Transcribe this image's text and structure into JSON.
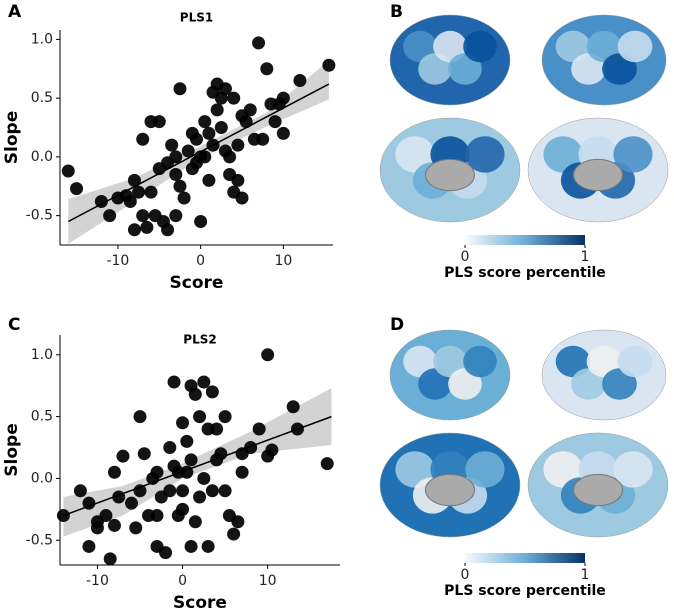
{
  "panel_labels": [
    "A",
    "B",
    "C",
    "D"
  ],
  "chart_data": [
    {
      "type": "scatter",
      "title": "PLS1",
      "x_label": "Score",
      "y_label": "Slope",
      "color": "#000000",
      "band_color": "#d3d3d3",
      "xlim": [
        -17,
        16
      ],
      "ylim": [
        -0.75,
        1.08
      ],
      "xticks": [
        -10,
        0,
        10
      ],
      "yticks": [
        -0.5,
        {
          "value": 0,
          "label": "0.0"
        },
        0.5,
        {
          "value": 1,
          "label": "1.0"
        }
      ],
      "x": [
        -16,
        -15,
        -12,
        -11,
        -10,
        -9,
        -8.5,
        -8,
        -7.5,
        -7,
        -6.5,
        -6,
        -5.5,
        -5,
        -5,
        -4.5,
        -4,
        -4,
        -3.5,
        -3,
        -3,
        -2.5,
        -2.5,
        -2,
        -1.5,
        -1,
        -1,
        -0.5,
        -0.5,
        0,
        0,
        0.5,
        0.5,
        1,
        1,
        1.5,
        1.5,
        2,
        2,
        2.5,
        2.5,
        3,
        3,
        3.5,
        3.5,
        4,
        4,
        4.5,
        4.5,
        5,
        5,
        5.5,
        6,
        6.5,
        7,
        7.5,
        8,
        8.5,
        9,
        9.5,
        10,
        10,
        12,
        15.5,
        -7,
        -6,
        -3,
        -8
      ],
      "y": [
        -0.12,
        -0.27,
        -0.38,
        -0.5,
        -0.35,
        -0.33,
        -0.38,
        -0.2,
        -0.3,
        -0.5,
        -0.6,
        -0.3,
        -0.5,
        -0.1,
        0.3,
        -0.55,
        -0.62,
        -0.05,
        0.1,
        -0.15,
        0,
        0.58,
        -0.25,
        -0.35,
        0.05,
        0.2,
        -0.1,
        0.15,
        -0.05,
        -0.55,
        0,
        0,
        0.3,
        0.2,
        -0.2,
        0.55,
        0.1,
        0.4,
        0.62,
        0.5,
        0.25,
        0.58,
        0.05,
        0,
        -0.15,
        0.5,
        -0.3,
        -0.2,
        0.1,
        -0.35,
        0.35,
        0.3,
        0.4,
        0.15,
        0.97,
        0.15,
        0.75,
        0.45,
        0.3,
        0.45,
        0.5,
        0.2,
        0.65,
        0.78,
        0.15,
        0.3,
        -0.5,
        -0.62
      ],
      "fit": {
        "x": [
          -16,
          15.5
        ],
        "y": [
          -0.55,
          0.62
        ]
      },
      "band": {
        "x": [
          -16,
          -8,
          0,
          8,
          15.5
        ],
        "lower": [
          -0.74,
          -0.38,
          -0.01,
          0.26,
          0.49
        ],
        "upper": [
          -0.36,
          -0.18,
          0.09,
          0.38,
          0.82
        ]
      }
    },
    {
      "type": "colorbar",
      "title": "PLS score percentile",
      "xlim": [
        0,
        1
      ],
      "xticks": [
        0,
        1
      ],
      "colors": [
        "#f7fbff",
        "#6baed6",
        "#08306b"
      ]
    },
    {
      "type": "scatter",
      "title": "PLS2",
      "x_label": "Score",
      "y_label": "Slope",
      "color": "#000000",
      "band_color": "#d3d3d3",
      "xlim": [
        -14.4,
        18.5
      ],
      "ylim": [
        -0.7,
        1.16
      ],
      "xticks": [
        -10,
        0,
        10
      ],
      "yticks": [
        -0.5,
        {
          "value": 0,
          "label": "0.0"
        },
        0.5,
        {
          "value": 1,
          "label": "1.0"
        }
      ],
      "x": [
        -14,
        -12,
        -11,
        -11,
        -10,
        -9,
        -8.5,
        -8,
        -8,
        -7.5,
        -7,
        -6,
        -5.5,
        -5,
        -5,
        -4.5,
        -4,
        -3.5,
        -3,
        -3,
        -2.5,
        -2,
        -1.5,
        -1.5,
        -1,
        -1,
        -0.5,
        -0.5,
        0,
        0,
        0,
        0.5,
        0.5,
        1,
        1,
        1.5,
        1.5,
        2,
        2,
        2.5,
        2.5,
        3,
        3,
        3.5,
        3.5,
        4,
        4,
        4.5,
        5,
        5,
        5.5,
        6,
        6.5,
        7,
        7,
        8,
        9,
        10,
        10,
        10.5,
        13,
        13.5,
        17,
        -3,
        1,
        -10
      ],
      "y": [
        -0.3,
        -0.1,
        -0.55,
        -0.2,
        -0.35,
        -0.3,
        -0.65,
        -0.38,
        0.05,
        -0.15,
        0.18,
        -0.2,
        -0.4,
        0.5,
        -0.1,
        0.2,
        -0.3,
        0,
        0.05,
        -0.55,
        -0.15,
        -0.6,
        0.25,
        -0.1,
        0.78,
        0.1,
        0.05,
        -0.3,
        -0.1,
        0.45,
        -0.25,
        0.05,
        0.3,
        -0.55,
        0.15,
        -0.35,
        0.68,
        0.5,
        -0.15,
        0.78,
        0,
        0.4,
        -0.55,
        0.7,
        -0.1,
        0.4,
        0.15,
        0.2,
        0.5,
        -0.1,
        -0.3,
        -0.45,
        -0.35,
        0.05,
        0.2,
        0.25,
        0.4,
        0.18,
        1,
        0.23,
        0.58,
        0.4,
        0.12,
        -0.3,
        0.75,
        -0.4
      ],
      "fit": {
        "x": [
          -14,
          17.5
        ],
        "y": [
          -0.3,
          0.5
        ]
      },
      "band": {
        "x": [
          -14,
          -7,
          0,
          8,
          17.5
        ],
        "lower": [
          -0.47,
          -0.3,
          0,
          0.2,
          0.27
        ],
        "upper": [
          -0.15,
          -0.06,
          0.12,
          0.38,
          0.73
        ]
      }
    },
    {
      "type": "colorbar",
      "title": "PLS score percentile",
      "xlim": [
        0,
        1
      ],
      "xticks": [
        0,
        1
      ],
      "colors": [
        "#f7fbff",
        "#6baed6",
        "#08306b"
      ]
    }
  ]
}
